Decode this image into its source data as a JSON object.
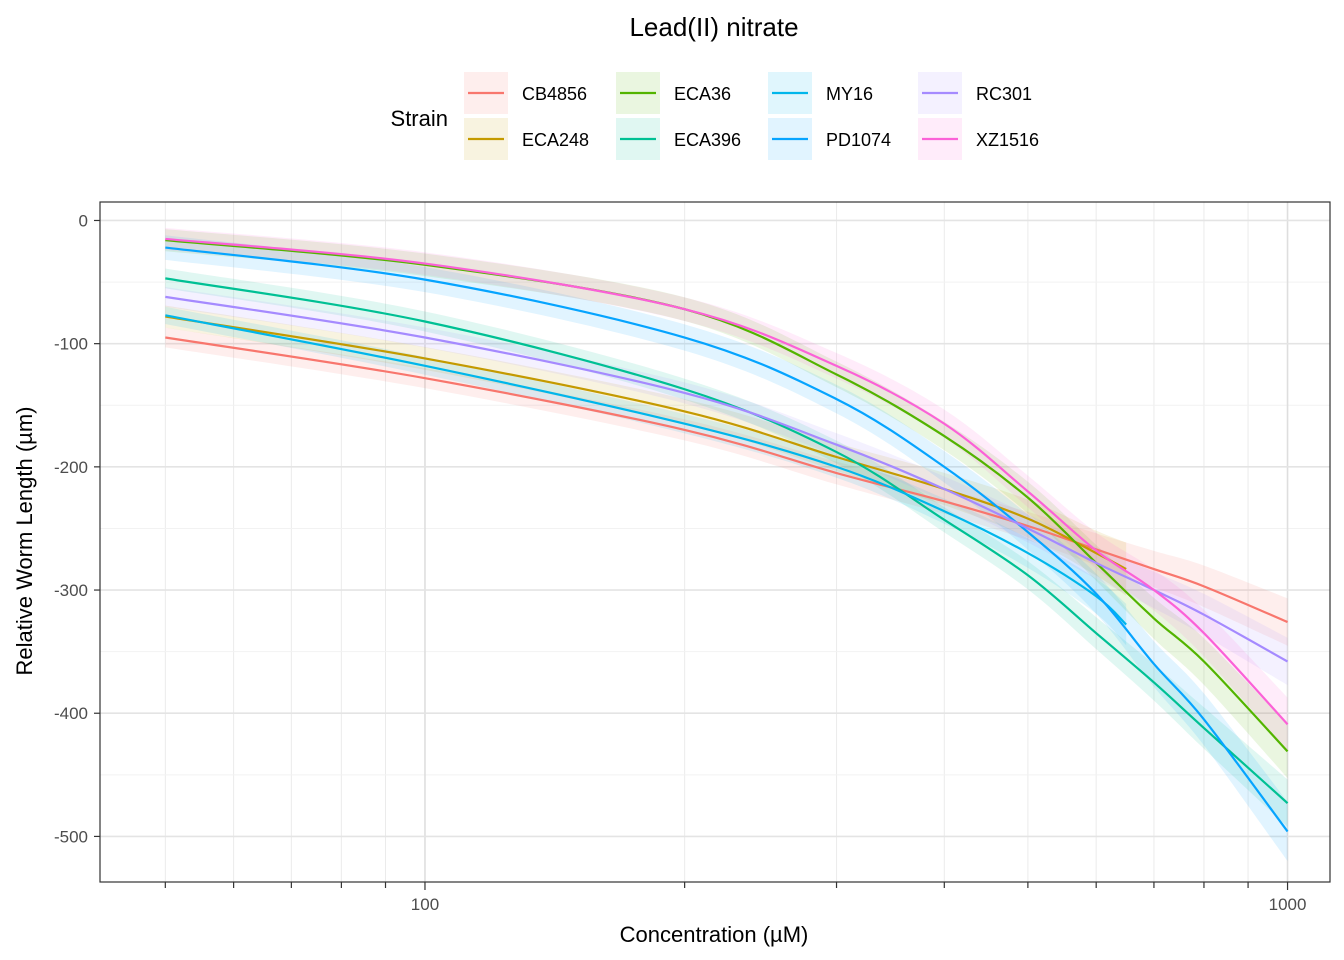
{
  "chart_data": {
    "type": "line",
    "title": "Lead(II) nitrate",
    "xlabel": "Concentration (µM)",
    "ylabel": "Relative Worm Length (µm)",
    "x_scale": "log10",
    "xlim": [
      42,
      1120
    ],
    "ylim": [
      -537,
      15
    ],
    "x_ticks": [
      {
        "value": 100,
        "label": "100"
      },
      {
        "value": 1000,
        "label": "1000"
      }
    ],
    "y_ticks": [
      {
        "value": 0,
        "label": "0"
      },
      {
        "value": -100,
        "label": "-100"
      },
      {
        "value": -200,
        "label": "-200"
      },
      {
        "value": -300,
        "label": "-300"
      },
      {
        "value": -400,
        "label": "-400"
      },
      {
        "value": -500,
        "label": "-500"
      }
    ],
    "legend": {
      "title": "Strain",
      "position": "top"
    },
    "series": [
      {
        "name": "CB4856",
        "color": "#F8766D",
        "ci": 8,
        "x": [
          50,
          100,
          200,
          300,
          400,
          500,
          600,
          700,
          800,
          1000
        ],
        "y": [
          -95,
          -128,
          -170,
          -205,
          -228,
          -248,
          -267,
          -283,
          -297,
          -326
        ]
      },
      {
        "name": "ECA248",
        "color": "#C49A00",
        "ci": 9,
        "x": [
          50,
          100,
          200,
          300,
          400,
          500,
          600,
          650
        ],
        "y": [
          -78,
          -112,
          -155,
          -192,
          -218,
          -242,
          -270,
          -283
        ]
      },
      {
        "name": "ECA36",
        "color": "#53B400",
        "ci": 9,
        "x": [
          50,
          100,
          200,
          300,
          400,
          500,
          600,
          700,
          800,
          1000
        ],
        "y": [
          -16,
          -36,
          -72,
          -125,
          -175,
          -225,
          -278,
          -323,
          -358,
          -431
        ]
      },
      {
        "name": "ECA396",
        "color": "#00C094",
        "ci": 8,
        "x": [
          50,
          100,
          200,
          300,
          400,
          500,
          600,
          700,
          800,
          1000
        ],
        "y": [
          -47,
          -82,
          -137,
          -188,
          -243,
          -288,
          -335,
          -375,
          -412,
          -473
        ]
      },
      {
        "name": "MY16",
        "color": "#00B6EB",
        "ci": 7,
        "x": [
          50,
          100,
          200,
          300,
          400,
          500,
          600,
          650
        ],
        "y": [
          -77,
          -118,
          -165,
          -200,
          -236,
          -270,
          -305,
          -328
        ]
      },
      {
        "name": "PD1074",
        "color": "#06A4FF",
        "ci": 10,
        "x": [
          50,
          100,
          200,
          300,
          400,
          500,
          600,
          700,
          800,
          1000
        ],
        "y": [
          -22,
          -48,
          -95,
          -145,
          -200,
          -253,
          -303,
          -360,
          -405,
          -496
        ]
      },
      {
        "name": "RC301",
        "color": "#A58AFF",
        "ci": 8,
        "x": [
          50,
          100,
          200,
          300,
          400,
          500,
          600,
          700,
          800,
          1000
        ],
        "y": [
          -62,
          -95,
          -140,
          -182,
          -218,
          -250,
          -278,
          -300,
          -320,
          -358
        ]
      },
      {
        "name": "XZ1516",
        "color": "#FB61D7",
        "ci": 9,
        "x": [
          50,
          100,
          200,
          300,
          400,
          500,
          600,
          700,
          800,
          1000
        ],
        "y": [
          -15,
          -35,
          -72,
          -118,
          -165,
          -220,
          -268,
          -300,
          -335,
          -409
        ]
      }
    ]
  }
}
